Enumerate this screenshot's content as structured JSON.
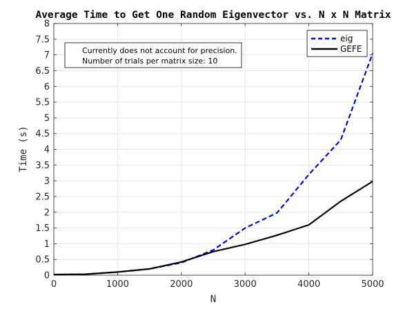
{
  "chart_data": {
    "type": "line",
    "title": "Average Time to Get One Random Eigenvector vs. N x N Matrix",
    "xlabel": "N",
    "ylabel": "Time (s)",
    "xlim": [
      0,
      5000
    ],
    "ylim": [
      0,
      8
    ],
    "xticks": [
      0,
      1000,
      2000,
      3000,
      4000,
      5000
    ],
    "yticks": [
      0,
      0.5,
      1,
      1.5,
      2,
      2.5,
      3,
      3.5,
      4,
      4.5,
      5,
      5.5,
      6,
      6.5,
      7,
      7.5,
      8
    ],
    "grid": true,
    "legend_position": "top-right",
    "annotation": [
      "Currently does not account for precision.",
      "Number of trials per matrix size: 10"
    ],
    "series": [
      {
        "name": "eig",
        "color": "#0000ff",
        "style": "dashed",
        "x": [
          0,
          500,
          1000,
          1500,
          2000,
          2500,
          3000,
          3500,
          4000,
          4500,
          5000
        ],
        "y": [
          0.02,
          0.03,
          0.1,
          0.2,
          0.4,
          0.8,
          1.5,
          1.98,
          3.2,
          4.3,
          7.05
        ]
      },
      {
        "name": "GEFE",
        "color": "#000000",
        "style": "solid",
        "x": [
          0,
          500,
          1000,
          1500,
          2000,
          2500,
          3000,
          3500,
          4000,
          4500,
          5000
        ],
        "y": [
          0.02,
          0.03,
          0.1,
          0.2,
          0.42,
          0.75,
          0.98,
          1.27,
          1.6,
          2.35,
          2.98
        ]
      }
    ]
  }
}
